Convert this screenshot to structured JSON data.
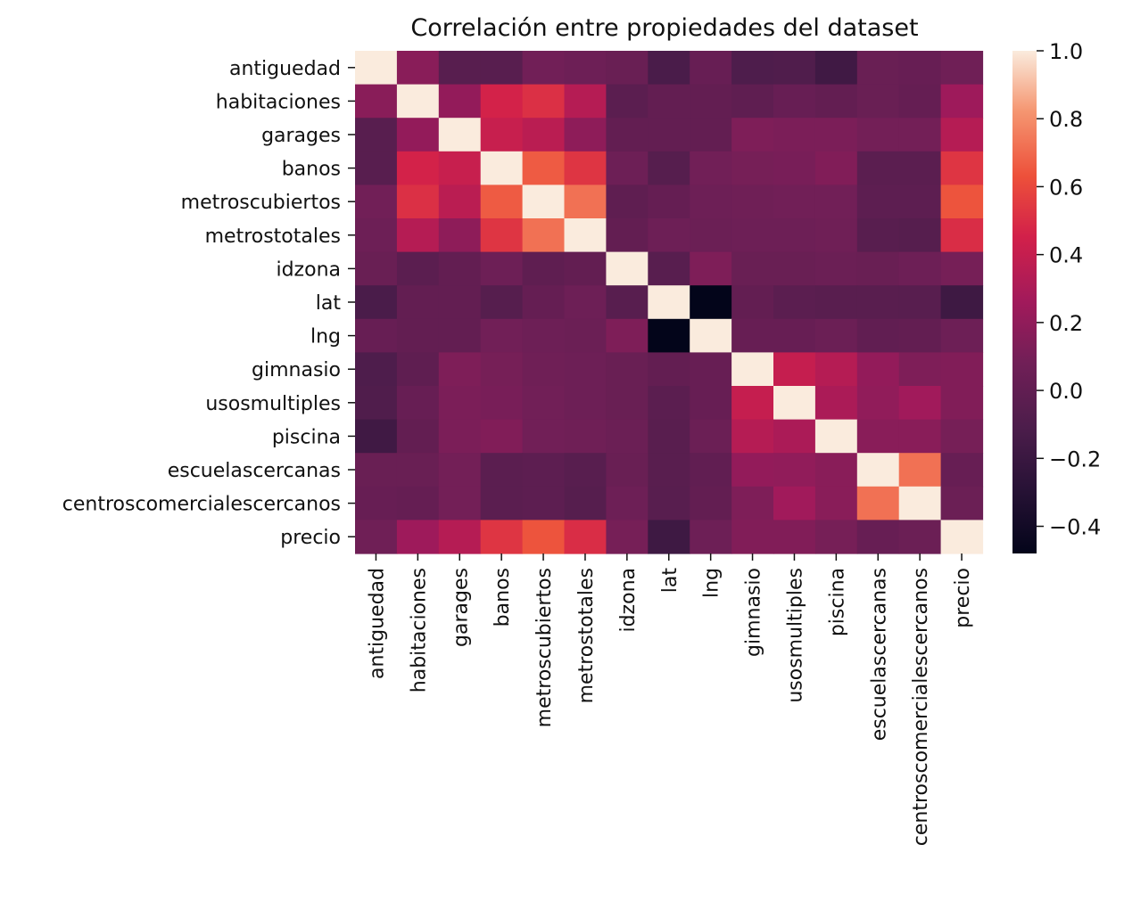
{
  "chart_data": {
    "type": "heatmap",
    "title": "Correlación entre propiedades del dataset",
    "xlabel": "",
    "ylabel": "",
    "variables": [
      "antiguedad",
      "habitaciones",
      "garages",
      "banos",
      "metroscubiertos",
      "metrostotales",
      "idzona",
      "lat",
      "lng",
      "gimnasio",
      "usosmultiples",
      "piscina",
      "escuelascercanas",
      "centroscomercialescercanos",
      "precio"
    ],
    "matrix": [
      [
        1.0,
        0.17,
        -0.05,
        -0.05,
        0.08,
        0.06,
        0.04,
        -0.12,
        0.03,
        -0.1,
        -0.09,
        -0.17,
        0.04,
        0.03,
        0.07
      ],
      [
        0.17,
        1.0,
        0.21,
        0.46,
        0.51,
        0.34,
        -0.03,
        0.01,
        0.01,
        -0.01,
        0.03,
        0.01,
        0.04,
        0.02,
        0.25
      ],
      [
        -0.05,
        0.21,
        1.0,
        0.41,
        0.36,
        0.19,
        0.01,
        0.01,
        0.01,
        0.13,
        0.12,
        0.12,
        0.09,
        0.09,
        0.34
      ],
      [
        -0.05,
        0.46,
        0.41,
        1.0,
        0.66,
        0.53,
        0.06,
        -0.06,
        0.08,
        0.1,
        0.11,
        0.14,
        -0.03,
        -0.03,
        0.53
      ],
      [
        0.08,
        0.51,
        0.36,
        0.66,
        1.0,
        0.72,
        -0.01,
        0.02,
        0.06,
        0.07,
        0.08,
        0.08,
        -0.02,
        -0.02,
        0.64
      ],
      [
        0.06,
        0.34,
        0.19,
        0.53,
        0.72,
        1.0,
        0.01,
        0.06,
        0.05,
        0.06,
        0.06,
        0.07,
        -0.05,
        -0.06,
        0.5
      ],
      [
        0.04,
        -0.03,
        0.01,
        0.06,
        -0.01,
        0.01,
        1.0,
        -0.05,
        0.13,
        0.04,
        0.04,
        0.05,
        0.04,
        0.06,
        0.1
      ],
      [
        -0.12,
        0.01,
        0.01,
        -0.06,
        0.02,
        0.06,
        -0.05,
        1.0,
        -0.48,
        0.01,
        -0.03,
        -0.04,
        -0.04,
        -0.05,
        -0.18
      ],
      [
        0.03,
        0.01,
        0.01,
        0.08,
        0.06,
        0.05,
        0.13,
        -0.48,
        1.0,
        0.03,
        0.03,
        0.05,
        0.0,
        0.01,
        0.06
      ],
      [
        -0.1,
        -0.01,
        0.13,
        0.1,
        0.07,
        0.06,
        0.04,
        0.01,
        0.03,
        1.0,
        0.4,
        0.34,
        0.21,
        0.13,
        0.14
      ],
      [
        -0.09,
        0.03,
        0.12,
        0.11,
        0.08,
        0.06,
        0.04,
        -0.03,
        0.03,
        0.4,
        1.0,
        0.3,
        0.2,
        0.26,
        0.14
      ],
      [
        -0.17,
        0.01,
        0.12,
        0.14,
        0.08,
        0.07,
        0.05,
        -0.04,
        0.05,
        0.34,
        0.3,
        1.0,
        0.17,
        0.17,
        0.1
      ],
      [
        0.04,
        0.04,
        0.09,
        -0.03,
        -0.02,
        -0.05,
        0.04,
        -0.04,
        0.0,
        0.21,
        0.2,
        0.17,
        1.0,
        0.72,
        0.03
      ],
      [
        0.03,
        0.02,
        0.09,
        -0.03,
        -0.02,
        -0.06,
        0.06,
        -0.05,
        0.01,
        0.13,
        0.26,
        0.17,
        0.72,
        1.0,
        0.05
      ],
      [
        0.07,
        0.25,
        0.34,
        0.53,
        0.64,
        0.5,
        0.1,
        -0.18,
        0.06,
        0.14,
        0.14,
        0.1,
        0.03,
        0.05,
        1.0
      ]
    ],
    "colorbar": {
      "vmin": -0.48,
      "vmax": 1.0,
      "ticks": [
        1.0,
        0.8,
        0.6,
        0.4,
        0.2,
        0.0,
        -0.2,
        -0.4
      ],
      "tick_labels": [
        "1.0",
        "0.8",
        "0.6",
        "0.4",
        "0.2",
        "0.0",
        "−0.2",
        "−0.4"
      ],
      "colormap": "rocket"
    },
    "grid": false
  }
}
